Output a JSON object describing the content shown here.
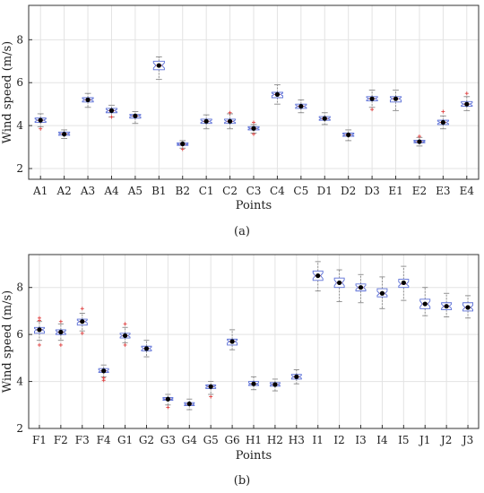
{
  "chart_data": [
    {
      "type": "box",
      "caption": "(a)",
      "xlabel": "Points",
      "ylabel": "Wind speed (m/s)",
      "ylim": [
        1.5,
        9.6
      ],
      "yticks": [
        2,
        4,
        6,
        8
      ],
      "grid": true,
      "categories": [
        "A1",
        "A2",
        "A3",
        "A4",
        "A5",
        "B1",
        "B2",
        "C1",
        "C2",
        "C3",
        "C4",
        "C5",
        "D1",
        "D2",
        "D3",
        "E1",
        "E2",
        "E3",
        "E4"
      ],
      "boxes": [
        {
          "q1": 4.15,
          "median": 4.25,
          "q3": 4.35,
          "wlow": 3.95,
          "whigh": 4.55,
          "mean": 4.25,
          "outliers": [
            3.85
          ]
        },
        {
          "q1": 3.55,
          "median": 3.62,
          "q3": 3.7,
          "wlow": 3.4,
          "whigh": 3.8,
          "mean": 3.6,
          "outliers": []
        },
        {
          "q1": 5.1,
          "median": 5.2,
          "q3": 5.3,
          "wlow": 4.85,
          "whigh": 5.5,
          "mean": 5.2,
          "outliers": []
        },
        {
          "q1": 4.6,
          "median": 4.7,
          "q3": 4.8,
          "wlow": 4.4,
          "whigh": 4.95,
          "mean": 4.7,
          "outliers": [
            4.4
          ]
        },
        {
          "q1": 4.35,
          "median": 4.45,
          "q3": 4.52,
          "wlow": 4.1,
          "whigh": 4.65,
          "mean": 4.45,
          "outliers": []
        },
        {
          "q1": 6.6,
          "median": 6.8,
          "q3": 7.0,
          "wlow": 6.15,
          "whigh": 7.2,
          "mean": 6.8,
          "outliers": []
        },
        {
          "q1": 3.08,
          "median": 3.13,
          "q3": 3.2,
          "wlow": 2.95,
          "whigh": 3.3,
          "mean": 3.15,
          "outliers": [
            2.9
          ]
        },
        {
          "q1": 4.1,
          "median": 4.2,
          "q3": 4.3,
          "wlow": 3.85,
          "whigh": 4.5,
          "mean": 4.2,
          "outliers": []
        },
        {
          "q1": 4.1,
          "median": 4.2,
          "q3": 4.3,
          "wlow": 3.85,
          "whigh": 4.55,
          "mean": 4.2,
          "outliers": [
            4.6
          ]
        },
        {
          "q1": 3.8,
          "median": 3.87,
          "q3": 3.95,
          "wlow": 3.65,
          "whigh": 4.05,
          "mean": 3.87,
          "outliers": [
            3.6,
            4.15
          ]
        },
        {
          "q1": 5.3,
          "median": 5.45,
          "q3": 5.55,
          "wlow": 5.0,
          "whigh": 5.9,
          "mean": 5.45,
          "outliers": []
        },
        {
          "q1": 4.8,
          "median": 4.9,
          "q3": 5.0,
          "wlow": 4.6,
          "whigh": 5.2,
          "mean": 4.9,
          "outliers": []
        },
        {
          "q1": 4.25,
          "median": 4.33,
          "q3": 4.42,
          "wlow": 4.05,
          "whigh": 4.6,
          "mean": 4.33,
          "outliers": []
        },
        {
          "q1": 3.5,
          "median": 3.57,
          "q3": 3.65,
          "wlow": 3.3,
          "whigh": 3.8,
          "mean": 3.57,
          "outliers": []
        },
        {
          "q1": 5.15,
          "median": 5.25,
          "q3": 5.35,
          "wlow": 4.85,
          "whigh": 5.65,
          "mean": 5.25,
          "outliers": [
            4.75
          ]
        },
        {
          "q1": 5.1,
          "median": 5.25,
          "q3": 5.35,
          "wlow": 4.7,
          "whigh": 5.65,
          "mean": 5.25,
          "outliers": []
        },
        {
          "q1": 3.2,
          "median": 3.25,
          "q3": 3.32,
          "wlow": 3.05,
          "whigh": 3.45,
          "mean": 3.25,
          "outliers": [
            3.5
          ]
        },
        {
          "q1": 4.05,
          "median": 4.15,
          "q3": 4.25,
          "wlow": 3.85,
          "whigh": 4.45,
          "mean": 4.15,
          "outliers": [
            4.65
          ]
        },
        {
          "q1": 4.9,
          "median": 5.0,
          "q3": 5.12,
          "wlow": 4.7,
          "whigh": 5.35,
          "mean": 5.0,
          "outliers": [
            5.5
          ]
        }
      ]
    },
    {
      "type": "box",
      "caption": "(b)",
      "xlabel": "Points",
      "ylabel": "Wind speed (m/s)",
      "ylim": [
        2,
        9.4
      ],
      "yticks": [
        2,
        4,
        6,
        8
      ],
      "grid": true,
      "categories": [
        "F1",
        "F2",
        "F3",
        "F4",
        "G1",
        "G2",
        "G3",
        "G4",
        "G5",
        "G6",
        "H1",
        "H2",
        "H3",
        "I1",
        "I2",
        "I3",
        "I4",
        "I5",
        "J1",
        "J2",
        "J3"
      ],
      "boxes": [
        {
          "q1": 6.05,
          "median": 6.2,
          "q3": 6.3,
          "wlow": 5.75,
          "whigh": 6.55,
          "mean": 6.2,
          "outliers": [
            5.55,
            6.6,
            6.7
          ]
        },
        {
          "q1": 6.0,
          "median": 6.1,
          "q3": 6.2,
          "wlow": 5.75,
          "whigh": 6.45,
          "mean": 6.1,
          "outliers": [
            5.55,
            6.55
          ]
        },
        {
          "q1": 6.4,
          "median": 6.55,
          "q3": 6.65,
          "wlow": 6.15,
          "whigh": 6.9,
          "mean": 6.55,
          "outliers": [
            6.05,
            7.1
          ]
        },
        {
          "q1": 4.38,
          "median": 4.45,
          "q3": 4.55,
          "wlow": 4.2,
          "whigh": 4.7,
          "mean": 4.45,
          "outliers": [
            4.05,
            4.15
          ]
        },
        {
          "q1": 5.85,
          "median": 5.95,
          "q3": 6.05,
          "wlow": 5.65,
          "whigh": 6.3,
          "mean": 5.95,
          "outliers": [
            5.55,
            6.45
          ]
        },
        {
          "q1": 5.3,
          "median": 5.4,
          "q3": 5.5,
          "wlow": 5.05,
          "whigh": 5.75,
          "mean": 5.4,
          "outliers": []
        },
        {
          "q1": 3.2,
          "median": 3.25,
          "q3": 3.32,
          "wlow": 3.0,
          "whigh": 3.45,
          "mean": 3.25,
          "outliers": [
            2.9
          ]
        },
        {
          "q1": 2.97,
          "median": 3.03,
          "q3": 3.1,
          "wlow": 2.8,
          "whigh": 3.25,
          "mean": 3.05,
          "outliers": []
        },
        {
          "q1": 3.7,
          "median": 3.78,
          "q3": 3.85,
          "wlow": 3.45,
          "whigh": 4.0,
          "mean": 3.78,
          "outliers": [
            3.35
          ]
        },
        {
          "q1": 5.55,
          "median": 5.7,
          "q3": 5.8,
          "wlow": 5.35,
          "whigh": 6.2,
          "mean": 5.7,
          "outliers": []
        },
        {
          "q1": 3.83,
          "median": 3.9,
          "q3": 4.0,
          "wlow": 3.65,
          "whigh": 4.2,
          "mean": 3.9,
          "outliers": []
        },
        {
          "q1": 3.8,
          "median": 3.87,
          "q3": 3.95,
          "wlow": 3.6,
          "whigh": 4.1,
          "mean": 3.87,
          "outliers": []
        },
        {
          "q1": 4.1,
          "median": 4.2,
          "q3": 4.3,
          "wlow": 3.9,
          "whigh": 4.5,
          "mean": 4.2,
          "outliers": []
        },
        {
          "q1": 8.3,
          "median": 8.5,
          "q3": 8.7,
          "wlow": 7.85,
          "whigh": 9.1,
          "mean": 8.5,
          "outliers": []
        },
        {
          "q1": 8.0,
          "median": 8.2,
          "q3": 8.4,
          "wlow": 7.4,
          "whigh": 8.75,
          "mean": 8.2,
          "outliers": []
        },
        {
          "q1": 7.85,
          "median": 8.0,
          "q3": 8.15,
          "wlow": 7.35,
          "whigh": 8.55,
          "mean": 8.0,
          "outliers": []
        },
        {
          "q1": 7.6,
          "median": 7.75,
          "q3": 7.95,
          "wlow": 7.1,
          "whigh": 8.45,
          "mean": 7.75,
          "outliers": []
        },
        {
          "q1": 8.0,
          "median": 8.15,
          "q3": 8.35,
          "wlow": 7.45,
          "whigh": 8.9,
          "mean": 8.2,
          "outliers": []
        },
        {
          "q1": 7.1,
          "median": 7.3,
          "q3": 7.5,
          "wlow": 6.8,
          "whigh": 8.0,
          "mean": 7.3,
          "outliers": []
        },
        {
          "q1": 7.05,
          "median": 7.2,
          "q3": 7.35,
          "wlow": 6.75,
          "whigh": 7.75,
          "mean": 7.2,
          "outliers": []
        },
        {
          "q1": 7.0,
          "median": 7.15,
          "q3": 7.35,
          "wlow": 6.7,
          "whigh": 7.65,
          "mean": 7.15,
          "outliers": []
        }
      ]
    }
  ]
}
